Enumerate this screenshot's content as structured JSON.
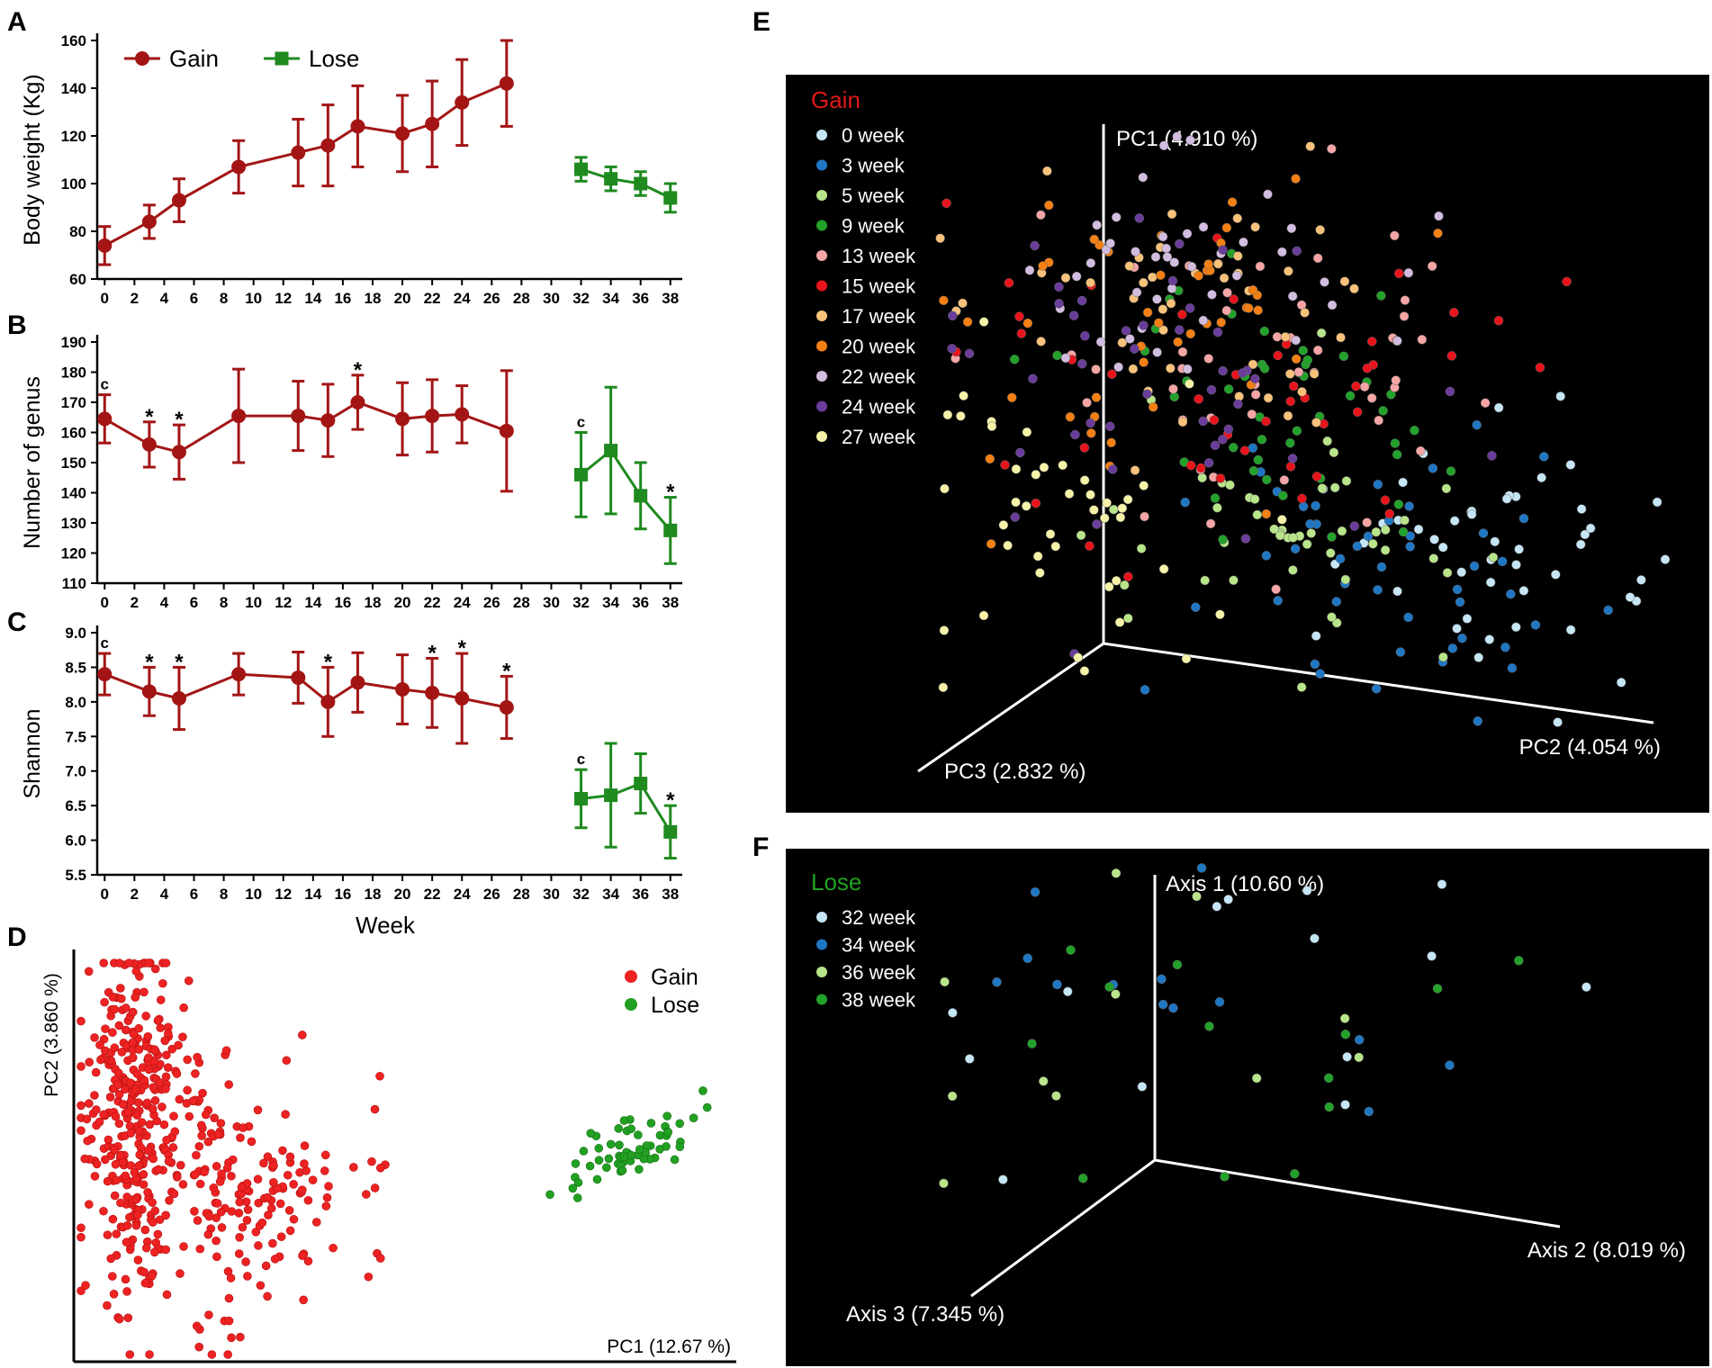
{
  "panels": {
    "A": "A",
    "B": "B",
    "C": "C",
    "D": "D",
    "E": "E",
    "F": "F"
  },
  "colors": {
    "gain": "#a31515",
    "lose": "#1f8a1f",
    "scatter_gain": "#ee2222",
    "scatter_lose": "#22a022"
  },
  "chart_data": [
    {
      "id": "A",
      "type": "line",
      "ylabel": "Body weight (Kg)",
      "xlabel": "",
      "ylim": [
        60,
        160
      ],
      "yticks": [
        60,
        80,
        100,
        120,
        140,
        160
      ],
      "xticks": [
        0,
        2,
        4,
        6,
        8,
        10,
        12,
        14,
        16,
        18,
        20,
        22,
        24,
        26,
        28,
        30,
        32,
        34,
        36,
        38
      ],
      "legend": [
        "Gain",
        "Lose"
      ],
      "legend_position": "top-left",
      "series": [
        {
          "name": "Gain",
          "x": [
            0,
            3,
            5,
            9,
            13,
            15,
            17,
            20,
            22,
            24,
            27
          ],
          "y": [
            74,
            84,
            93,
            107,
            113,
            116,
            124,
            121,
            125,
            134,
            142
          ],
          "err": [
            8,
            7,
            9,
            11,
            14,
            17,
            17,
            16,
            18,
            18,
            18
          ]
        },
        {
          "name": "Lose",
          "x": [
            32,
            34,
            36,
            38
          ],
          "y": [
            106,
            102,
            100,
            94
          ],
          "err": [
            5,
            5,
            5,
            6
          ]
        }
      ]
    },
    {
      "id": "B",
      "type": "line",
      "ylabel": "Number of genus",
      "xlabel": "",
      "ylim": [
        110,
        190
      ],
      "yticks": [
        110,
        120,
        130,
        140,
        150,
        160,
        170,
        180,
        190
      ],
      "xticks": [
        0,
        2,
        4,
        6,
        8,
        10,
        12,
        14,
        16,
        18,
        20,
        22,
        24,
        26,
        28,
        30,
        32,
        34,
        36,
        38
      ],
      "series": [
        {
          "name": "Gain",
          "x": [
            0,
            3,
            5,
            9,
            13,
            15,
            17,
            20,
            22,
            24,
            27
          ],
          "y": [
            164.5,
            156,
            153.5,
            165.5,
            165.5,
            164,
            170,
            164.5,
            165.5,
            166,
            160.5
          ],
          "err": [
            8,
            7.5,
            9,
            15.5,
            11.5,
            12,
            9,
            12,
            12,
            9.5,
            20
          ]
        },
        {
          "name": "Lose",
          "x": [
            32,
            34,
            36,
            38
          ],
          "y": [
            146,
            154,
            139,
            127.5
          ],
          "err": [
            14,
            21,
            11,
            11
          ]
        }
      ],
      "annotations": [
        {
          "x": 0,
          "text": "c",
          "series": "Gain"
        },
        {
          "x": 3,
          "text": "*",
          "series": "Gain"
        },
        {
          "x": 5,
          "text": "*",
          "series": "Gain"
        },
        {
          "x": 17,
          "text": "*",
          "series": "Gain"
        },
        {
          "x": 32,
          "text": "c",
          "series": "Lose"
        },
        {
          "x": 38,
          "text": "*",
          "series": "Lose"
        }
      ]
    },
    {
      "id": "C",
      "type": "line",
      "ylabel": "Shannon",
      "xlabel": "Week",
      "ylim": [
        5.5,
        9.0
      ],
      "yticks": [
        "5.5",
        "6.0",
        "6.5",
        "7.0",
        "7.5",
        "8.0",
        "8.5",
        "9.0"
      ],
      "xticks": [
        0,
        2,
        4,
        6,
        8,
        10,
        12,
        14,
        16,
        18,
        20,
        22,
        24,
        26,
        28,
        30,
        32,
        34,
        36,
        38
      ],
      "series": [
        {
          "name": "Gain",
          "x": [
            0,
            3,
            5,
            9,
            13,
            15,
            17,
            20,
            22,
            24,
            27
          ],
          "y": [
            8.4,
            8.15,
            8.05,
            8.4,
            8.35,
            8.0,
            8.28,
            8.18,
            8.13,
            8.05,
            7.92
          ],
          "err": [
            0.3,
            0.35,
            0.45,
            0.3,
            0.37,
            0.5,
            0.43,
            0.5,
            0.5,
            0.65,
            0.45
          ]
        },
        {
          "name": "Lose",
          "x": [
            32,
            34,
            36,
            38
          ],
          "y": [
            6.6,
            6.65,
            6.82,
            6.12
          ],
          "err": [
            0.42,
            0.75,
            0.43,
            0.38
          ]
        }
      ],
      "annotations": [
        {
          "x": 0,
          "text": "c",
          "series": "Gain"
        },
        {
          "x": 3,
          "text": "*",
          "series": "Gain"
        },
        {
          "x": 5,
          "text": "*",
          "series": "Gain"
        },
        {
          "x": 15,
          "text": "*",
          "series": "Gain"
        },
        {
          "x": 22,
          "text": "*",
          "series": "Gain"
        },
        {
          "x": 24,
          "text": "*",
          "series": "Gain"
        },
        {
          "x": 27,
          "text": "*",
          "series": "Gain"
        },
        {
          "x": 32,
          "text": "c",
          "series": "Lose"
        },
        {
          "x": 38,
          "text": "*",
          "series": "Lose"
        }
      ]
    },
    {
      "id": "D",
      "type": "scatter",
      "xlabel": "PC1 (12.67 %)",
      "ylabel": "PC2 (3.860 %)",
      "legend": [
        "Gain",
        "Lose"
      ],
      "legend_position": "top-right",
      "series": [
        {
          "name": "Gain",
          "count": 520
        },
        {
          "name": "Lose",
          "count": 60
        }
      ]
    },
    {
      "id": "E",
      "type": "scatter",
      "legend_title": "Gain",
      "axes": [
        "PC1 (4.910 %)",
        "PC2 (4.054 %)",
        "PC3 (2.832 %)"
      ],
      "series": [
        {
          "name": "0 week",
          "color": "#c6e6f5"
        },
        {
          "name": "3 week",
          "color": "#1f77c4"
        },
        {
          "name": "5 week",
          "color": "#b9e58a"
        },
        {
          "name": "9 week",
          "color": "#22a22a"
        },
        {
          "name": "13 week",
          "color": "#f5a5a5"
        },
        {
          "name": "15 week",
          "color": "#e8141c"
        },
        {
          "name": "17 week",
          "color": "#f8c27a"
        },
        {
          "name": "20 week",
          "color": "#f47f12"
        },
        {
          "name": "22 week",
          "color": "#d2bde0"
        },
        {
          "name": "24 week",
          "color": "#6a3d9a"
        },
        {
          "name": "27 week",
          "color": "#f6f3a8"
        }
      ]
    },
    {
      "id": "F",
      "type": "scatter",
      "legend_title": "Lose",
      "axes": [
        "Axis 1 (10.60 %)",
        "Axis 2 (8.019 %)",
        "Axis 3 (7.345 %)"
      ],
      "series": [
        {
          "name": "32 week",
          "color": "#c6e6f5"
        },
        {
          "name": "34 week",
          "color": "#1f77c4"
        },
        {
          "name": "36 week",
          "color": "#b9e58a"
        },
        {
          "name": "38 week",
          "color": "#22a22a"
        }
      ]
    }
  ]
}
